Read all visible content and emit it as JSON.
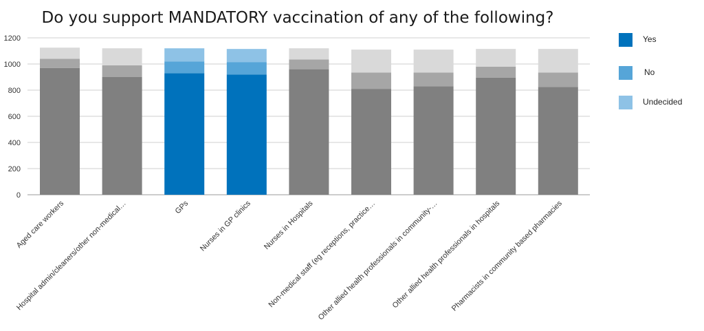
{
  "chart_data": {
    "type": "bar",
    "stacked": true,
    "title": "Do you support MANDATORY vaccination of any of the following?",
    "xlabel": "",
    "ylabel": "",
    "ylim": [
      0,
      1200
    ],
    "yticks": [
      0,
      200,
      400,
      600,
      800,
      1000,
      1200
    ],
    "grid": true,
    "legend": "right",
    "categories": [
      "Aged care workers",
      "Hospital admin/cleaners/other non-medical…",
      "GPs",
      "Nurses in GP clinics",
      "Nurses in Hospitals",
      "Non-medical staff (eg receptions, practice…",
      "Other allied health professionals in community-…",
      "Other allied health professionals in hospitals",
      "Pharmacists in community based pharmacies"
    ],
    "highlighted": [
      false,
      false,
      true,
      true,
      false,
      false,
      false,
      false,
      false
    ],
    "series": [
      {
        "name": "Yes",
        "values": [
          970,
          900,
          930,
          920,
          960,
          810,
          830,
          895,
          825
        ]
      },
      {
        "name": "No",
        "values": [
          70,
          90,
          90,
          95,
          75,
          125,
          105,
          85,
          110
        ]
      },
      {
        "name": "Undecided",
        "values": [
          85,
          130,
          100,
          100,
          85,
          175,
          175,
          135,
          180
        ]
      }
    ],
    "colors": {
      "highlight": [
        "#0072bc",
        "#56a5d8",
        "#8ec2e6"
      ],
      "muted": [
        "#808080",
        "#a6a6a6",
        "#d9d9d9"
      ]
    }
  }
}
